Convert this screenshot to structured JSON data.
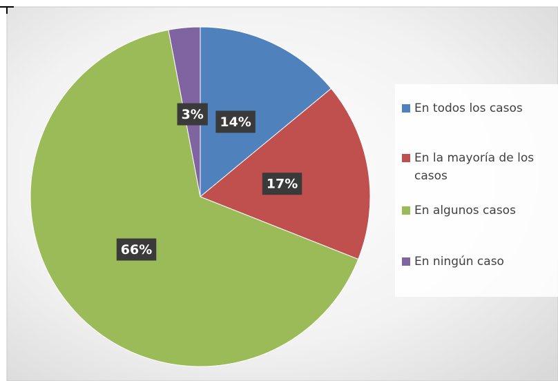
{
  "chart_data": {
    "type": "pie",
    "categories": [
      "En todos los casos",
      "En la mayoría de los casos",
      "En algunos casos",
      "En ningún caso"
    ],
    "values": [
      14,
      17,
      66,
      3
    ],
    "value_labels": [
      "14%",
      "17%",
      "66%",
      "3%"
    ],
    "colors": [
      "#4f81bd",
      "#c0504d",
      "#9bbb59",
      "#8064a2"
    ],
    "legend": "right"
  }
}
